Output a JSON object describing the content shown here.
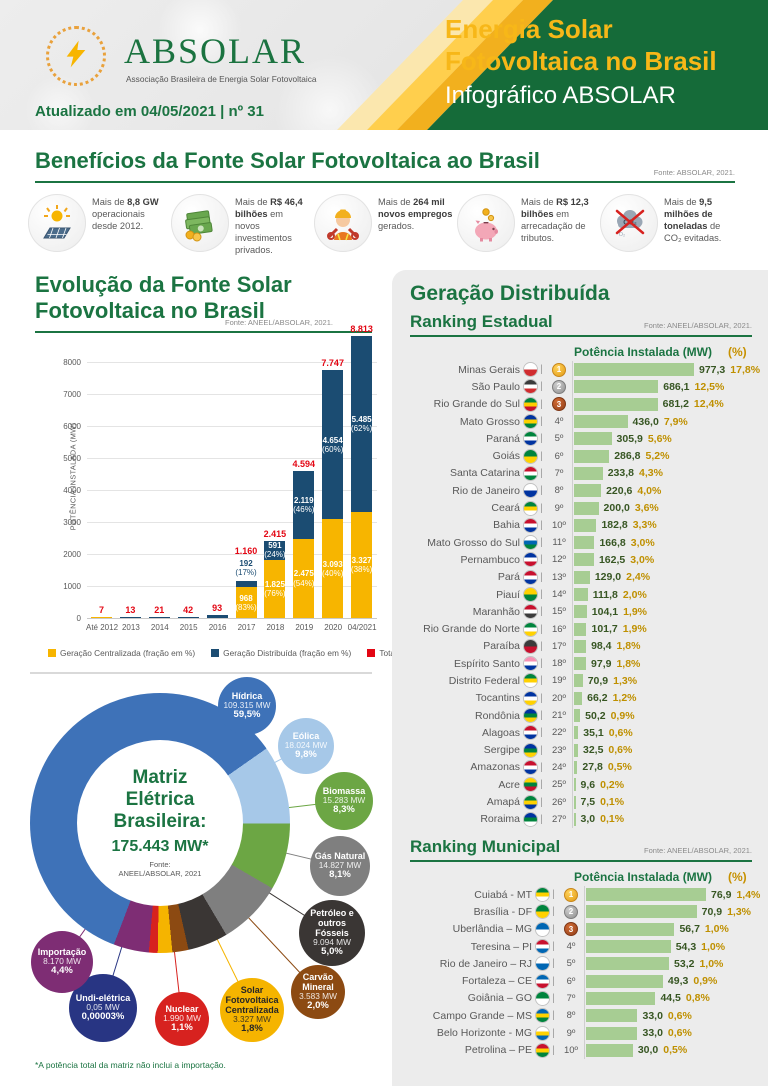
{
  "header": {
    "logo": {
      "brand": "ABSOLAR",
      "tagline": "Associação Brasileira de Energia Solar Fotovoltaica"
    },
    "updated": "Atualizado em 04/05/2021 | nº 31",
    "title_line1": "Energia Solar",
    "title_line2": "Fotovoltaica no Brasil",
    "subtitle": "Infográfico ABSOLAR"
  },
  "benefits": {
    "title": "Benefícios da Fonte Solar Fotovoltaica ao Brasil",
    "source": "Fonte: ABSOLAR, 2021.",
    "items": [
      {
        "icon": "solar-panel-icon",
        "pre": "Mais de ",
        "bold": "8,8 GW",
        "post": " operacionais desde 2012."
      },
      {
        "icon": "money-icon",
        "pre": "Mais de ",
        "bold": "R$ 46,4 bilhões",
        "post": " em novos investimentos privados."
      },
      {
        "icon": "worker-icon",
        "pre": "Mais de ",
        "bold": "264 mil novos empregos",
        "post": " gerados."
      },
      {
        "icon": "piggy-bank-icon",
        "pre": "Mais de ",
        "bold": "R$ 12,3 bilhões",
        "post": " em arrecadação de tributos."
      },
      {
        "icon": "co2-cloud-icon",
        "pre": "Mais de ",
        "bold": "9,5 milhões de toneladas",
        "post": " de CO₂ evitadas."
      }
    ]
  },
  "gd": {
    "title": "Geração Distribuída"
  },
  "footnote": "*A potência total da matriz não inclui a importação.",
  "chart_data": [
    {
      "type": "bar",
      "stacked": true,
      "title": "Evolução da Fonte Solar\nFotovoltaica no Brasil",
      "source": "Fonte: ANEEL/ABSOLAR, 2021.",
      "ylabel": "POTÊNCIA INSTALADA  (MW)",
      "ylim": [
        0,
        8000
      ],
      "yticks": [
        0,
        1000,
        2000,
        3000,
        4000,
        5000,
        6000,
        7000,
        8000
      ],
      "categories": [
        "Até 2012",
        "2013",
        "2014",
        "2015",
        "2016",
        "2017",
        "2018",
        "2019",
        "2020",
        "04/2021"
      ],
      "series": [
        {
          "name": "Geração Centralizada (fração em %)",
          "color": "#F7B500",
          "values": [
            7,
            0,
            0,
            0,
            0,
            968,
            1825,
            2475,
            3093,
            3327
          ],
          "labels": [
            null,
            null,
            null,
            null,
            null,
            "968|(83%)",
            "1.825|(76%)",
            "2.475|(54%)",
            "3.093|(40%)",
            "3.327|(38%)"
          ]
        },
        {
          "name": "Geração Distribuída (fração em %)",
          "color": "#1B4C72",
          "values": [
            0,
            13,
            21,
            42,
            93,
            192,
            591,
            2119,
            4654,
            5485
          ],
          "labels": [
            null,
            null,
            null,
            null,
            null,
            "192|(17%)",
            "591|(24%)",
            "2.119|(46%)",
            "4.654|(60%)",
            "5.485|(62%)"
          ]
        }
      ],
      "total": {
        "name": "Total (GC+GD)",
        "color": "#E30613",
        "values": [
          7,
          13,
          21,
          42,
          93,
          1160,
          2415,
          4594,
          7747,
          8813
        ],
        "labels": [
          "7",
          "13",
          "21",
          "42",
          "93",
          "1.160",
          "2.415",
          "4.594",
          "7.747",
          "8.813"
        ]
      }
    },
    {
      "type": "pie",
      "center_title": "Matriz\nElétrica\nBrasileira:",
      "center_value": "175.443 MW*",
      "center_source": "Fonte:\nANEEL/ABSOLAR, 2021",
      "slices": [
        {
          "name": "Hídrica",
          "mw": "109.315 MW",
          "pct": 59.5,
          "pct_label": "59,5%",
          "color": "#3E72B8",
          "text": "#FFFFFF"
        },
        {
          "name": "Eólica",
          "mw": "18.024 MW",
          "pct": 9.8,
          "pct_label": "9,8%",
          "color": "#A6C8E8",
          "text": "#FFFFFF"
        },
        {
          "name": "Biomassa",
          "mw": "15.283 MW",
          "pct": 8.3,
          "pct_label": "8,3%",
          "color": "#6CA644",
          "text": "#FFFFFF"
        },
        {
          "name": "Gás Natural",
          "mw": "14.827 MW",
          "pct": 8.1,
          "pct_label": "8,1%",
          "color": "#7F7F7F",
          "text": "#FFFFFF"
        },
        {
          "name": "Petróleo e outros Fósseis",
          "mw": "9.094 MW",
          "pct": 5.0,
          "pct_label": "5,0%",
          "color": "#3A3634",
          "text": "#FFFFFF"
        },
        {
          "name": "Carvão Mineral",
          "mw": "3.583 MW",
          "pct": 2.0,
          "pct_label": "2,0%",
          "color": "#8C4A12",
          "text": "#FFFFFF"
        },
        {
          "name": "Solar Fotovoltaica Centralizada",
          "mw": "3.327 MW",
          "pct": 1.8,
          "pct_label": "1,8%",
          "color": "#F5B400",
          "text": "#262626"
        },
        {
          "name": "Nuclear",
          "mw": "1.990 MW",
          "pct": 1.1,
          "pct_label": "1,1%",
          "color": "#D7221F",
          "text": "#FFFFFF"
        },
        {
          "name": "Undi-elétrica",
          "mw": "0,05 MW",
          "pct": 3e-05,
          "pct_label": "0,00003%",
          "color": "#283583",
          "text": "#FFFFFF"
        },
        {
          "name": "Importação",
          "mw": "8.170 MW",
          "pct": 4.4,
          "pct_label": "4,4%",
          "color": "#7E2D74",
          "text": "#FFFFFF"
        }
      ]
    },
    {
      "type": "bar",
      "orientation": "horizontal",
      "title": "Ranking Estadual",
      "source": "Fonte: ANEEL/ABSOLAR, 2021.",
      "col_mw": "Potência Instalada (MW)",
      "col_pct": "(%)",
      "rows": [
        {
          "rank": 1,
          "name": "Minas Gerais",
          "value": 977.3,
          "value_label": "977,3",
          "pct_label": "17,8%",
          "flag": [
            "#ffffff",
            "#d02c2f"
          ]
        },
        {
          "rank": 2,
          "name": "São Paulo",
          "value": 686.1,
          "value_label": "686,1",
          "pct_label": "12,5%",
          "flag": [
            "#3b3b3b",
            "#ffffff",
            "#d02c2f"
          ]
        },
        {
          "rank": 3,
          "name": "Rio Grande do Sul",
          "value": 681.2,
          "value_label": "681,2",
          "pct_label": "12,4%",
          "flag": [
            "#00843d",
            "#ffcc00",
            "#c8102e"
          ]
        },
        {
          "rank": 4,
          "name": "Mato Grosso",
          "value": 436.0,
          "value_label": "436,0",
          "pct_label": "7,9%",
          "flag": [
            "#0033a0",
            "#ffd100",
            "#00843d"
          ]
        },
        {
          "rank": 5,
          "name": "Paraná",
          "value": 305.9,
          "value_label": "305,9",
          "pct_label": "5,6%",
          "flag": [
            "#00843d",
            "#ffffff",
            "#0033a0"
          ]
        },
        {
          "rank": 6,
          "name": "Goiás",
          "value": 286.8,
          "value_label": "286,8",
          "pct_label": "5,2%",
          "flag": [
            "#00843d",
            "#ffd100"
          ]
        },
        {
          "rank": 7,
          "name": "Santa Catarina",
          "value": 233.8,
          "value_label": "233,8",
          "pct_label": "4,3%",
          "flag": [
            "#c8102e",
            "#ffffff",
            "#00843d"
          ]
        },
        {
          "rank": 8,
          "name": "Rio de Janeiro",
          "value": 220.6,
          "value_label": "220,6",
          "pct_label": "4,0%",
          "flag": [
            "#ffffff",
            "#0033a0"
          ]
        },
        {
          "rank": 9,
          "name": "Ceará",
          "value": 200.0,
          "value_label": "200,0",
          "pct_label": "3,6%",
          "flag": [
            "#00843d",
            "#ffd100",
            "#ffffff"
          ]
        },
        {
          "rank": 10,
          "name": "Bahia",
          "value": 182.8,
          "value_label": "182,8",
          "pct_label": "3,3%",
          "flag": [
            "#c8102e",
            "#ffffff",
            "#0033a0"
          ]
        },
        {
          "rank": 11,
          "name": "Mato Grosso do Sul",
          "value": 166.8,
          "value_label": "166,8",
          "pct_label": "3,0%",
          "flag": [
            "#ffffff",
            "#0066b3",
            "#00843d"
          ]
        },
        {
          "rank": 12,
          "name": "Pernambuco",
          "value": 162.5,
          "value_label": "162,5",
          "pct_label": "3,0%",
          "flag": [
            "#0033a0",
            "#ffffff",
            "#c8102e"
          ]
        },
        {
          "rank": 13,
          "name": "Pará",
          "value": 129.0,
          "value_label": "129,0",
          "pct_label": "2,4%",
          "flag": [
            "#c8102e",
            "#ffffff",
            "#0033a0"
          ]
        },
        {
          "rank": 14,
          "name": "Piauí",
          "value": 111.8,
          "value_label": "111,8",
          "pct_label": "2,0%",
          "flag": [
            "#ffd100",
            "#00843d"
          ]
        },
        {
          "rank": 15,
          "name": "Maranhão",
          "value": 104.1,
          "value_label": "104,1",
          "pct_label": "1,9%",
          "flag": [
            "#c8102e",
            "#ffffff",
            "#3b3b3b"
          ]
        },
        {
          "rank": 16,
          "name": "Rio Grande do Norte",
          "value": 101.7,
          "value_label": "101,7",
          "pct_label": "1,9%",
          "flag": [
            "#00843d",
            "#ffffff",
            "#ffd100"
          ]
        },
        {
          "rank": 17,
          "name": "Paraíba",
          "value": 98.4,
          "value_label": "98,4",
          "pct_label": "1,8%",
          "flag": [
            "#3b3b3b",
            "#c8102e"
          ]
        },
        {
          "rank": 18,
          "name": "Espírito Santo",
          "value": 97.9,
          "value_label": "97,9",
          "pct_label": "1,8%",
          "flag": [
            "#f78fb3",
            "#ffffff",
            "#0033a0"
          ]
        },
        {
          "rank": 19,
          "name": "Distrito Federal",
          "value": 70.9,
          "value_label": "70,9",
          "pct_label": "1,3%",
          "flag": [
            "#00843d",
            "#ffd100",
            "#ffffff"
          ]
        },
        {
          "rank": 20,
          "name": "Tocantins",
          "value": 66.2,
          "value_label": "66,2",
          "pct_label": "1,2%",
          "flag": [
            "#0033a0",
            "#ffffff",
            "#ffd100"
          ]
        },
        {
          "rank": 21,
          "name": "Rondônia",
          "value": 50.2,
          "value_label": "50,2",
          "pct_label": "0,9%",
          "flag": [
            "#0033a0",
            "#00843d",
            "#ffd100"
          ]
        },
        {
          "rank": 22,
          "name": "Alagoas",
          "value": 35.1,
          "value_label": "35,1",
          "pct_label": "0,6%",
          "flag": [
            "#c8102e",
            "#ffffff",
            "#0033a0"
          ]
        },
        {
          "rank": 23,
          "name": "Sergipe",
          "value": 32.5,
          "value_label": "32,5",
          "pct_label": "0,6%",
          "flag": [
            "#0033a0",
            "#00843d",
            "#ffd100"
          ]
        },
        {
          "rank": 24,
          "name": "Amazonas",
          "value": 27.8,
          "value_label": "27,8",
          "pct_label": "0,5%",
          "flag": [
            "#c8102e",
            "#ffffff",
            "#0033a0"
          ]
        },
        {
          "rank": 25,
          "name": "Acre",
          "value": 9.6,
          "value_label": "9,6",
          "pct_label": "0,2%",
          "flag": [
            "#ffd100",
            "#00843d",
            "#c8102e"
          ]
        },
        {
          "rank": 26,
          "name": "Amapá",
          "value": 7.5,
          "value_label": "7,5",
          "pct_label": "0,1%",
          "flag": [
            "#00843d",
            "#ffd100",
            "#0033a0"
          ]
        },
        {
          "rank": 27,
          "name": "Roraima",
          "value": 3.0,
          "value_label": "3,0",
          "pct_label": "0,1%",
          "flag": [
            "#0033a0",
            "#00843d",
            "#ffffff"
          ]
        }
      ]
    },
    {
      "type": "bar",
      "orientation": "horizontal",
      "title": "Ranking Municipal",
      "source": "Fonte: ANEEL/ABSOLAR, 2021.",
      "col_mw": "Potência Instalada (MW)",
      "col_pct": "(%)",
      "rows": [
        {
          "rank": 1,
          "name": "Cuiabá - MT",
          "value": 76.9,
          "value_label": "76,9",
          "pct_label": "1,4%",
          "flag": [
            "#00843d",
            "#ffd100",
            "#ffffff"
          ]
        },
        {
          "rank": 2,
          "name": "Brasília - DF",
          "value": 70.9,
          "value_label": "70,9",
          "pct_label": "1,3%",
          "flag": [
            "#00843d",
            "#ffd100"
          ]
        },
        {
          "rank": 3,
          "name": "Uberlândia – MG",
          "value": 56.7,
          "value_label": "56,7",
          "pct_label": "1,0%",
          "flag": [
            "#0066b3",
            "#ffffff"
          ]
        },
        {
          "rank": 4,
          "name": "Teresina – PI",
          "value": 54.3,
          "value_label": "54,3",
          "pct_label": "1,0%",
          "flag": [
            "#c8102e",
            "#ffffff",
            "#0066b3"
          ]
        },
        {
          "rank": 5,
          "name": "Rio de Janeiro – RJ",
          "value": 53.2,
          "value_label": "53,2",
          "pct_label": "1,0%",
          "flag": [
            "#ffffff",
            "#0066b3"
          ]
        },
        {
          "rank": 6,
          "name": "Fortaleza – CE",
          "value": 49.3,
          "value_label": "49,3",
          "pct_label": "0,9%",
          "flag": [
            "#0066b3",
            "#ffffff",
            "#c8102e"
          ]
        },
        {
          "rank": 7,
          "name": "Goiânia – GO",
          "value": 44.5,
          "value_label": "44,5",
          "pct_label": "0,8%",
          "flag": [
            "#00843d",
            "#ffffff"
          ]
        },
        {
          "rank": 8,
          "name": "Campo Grande – MS",
          "value": 33.0,
          "value_label": "33,0",
          "pct_label": "0,6%",
          "flag": [
            "#0066b3",
            "#ffd100",
            "#00843d"
          ]
        },
        {
          "rank": 9,
          "name": "Belo Horizonte - MG",
          "value": 33.0,
          "value_label": "33,0",
          "pct_label": "0,6%",
          "flag": [
            "#ffffff",
            "#ffd100",
            "#0066b3"
          ]
        },
        {
          "rank": 10,
          "name": "Petrolina – PE",
          "value": 30.0,
          "value_label": "30,0",
          "pct_label": "0,5%",
          "flag": [
            "#c8102e",
            "#ffd100",
            "#00843d"
          ]
        }
      ]
    }
  ]
}
